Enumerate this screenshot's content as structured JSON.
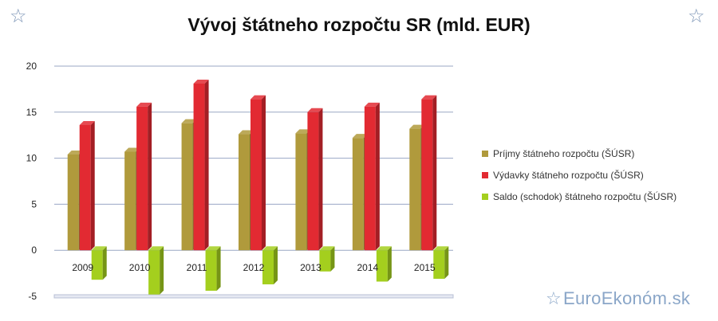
{
  "decor": {
    "star_glyph": "☆",
    "star_color": "#7f97b8"
  },
  "brand": {
    "text": "EuroEkonóm.sk",
    "color": "#8aa6c8"
  },
  "chart_data": {
    "type": "bar",
    "title": "Vývoj štátneho rozpočtu SR (mld. EUR)",
    "xlabel": "",
    "ylabel": "",
    "categories": [
      "2009",
      "2010",
      "2011",
      "2012",
      "2013",
      "2014",
      "2015"
    ],
    "series": [
      {
        "name": "Príjmy štátneho rozpočtu (ŠÚSR)",
        "color": "#b09a3c",
        "values": [
          10.4,
          10.7,
          13.8,
          12.6,
          12.7,
          12.2,
          13.2
        ]
      },
      {
        "name": "Výdavky štátneho rozpočtu (ŠÚSR)",
        "color": "#e22a32",
        "values": [
          13.6,
          15.6,
          18.1,
          16.4,
          15.0,
          15.6,
          16.4
        ]
      },
      {
        "name": "Saldo (schodok) štátneho rozpočtu (ŠÚSR)",
        "color": "#a4cf1e",
        "values": [
          -3.2,
          -4.8,
          -4.4,
          -3.7,
          -2.3,
          -3.4,
          -3.1
        ]
      }
    ],
    "yticks": [
      "20",
      "15",
      "10",
      "5",
      "0",
      "-5"
    ],
    "ylim": [
      -5,
      20
    ],
    "grid": true,
    "legend_position": "right"
  }
}
